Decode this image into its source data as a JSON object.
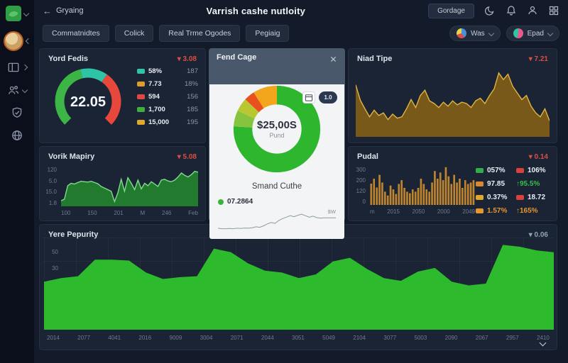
{
  "header": {
    "back_label": "Gryaing",
    "title": "Varrish cashe nutloity",
    "action_label": "Gordage"
  },
  "tabs": [
    "Commatnidtes",
    "Colick",
    "Real Trme Ogodes",
    "Pegiaig"
  ],
  "filters": {
    "filter1_label": "Was",
    "filter2_label": "Epad"
  },
  "cards": {
    "gauge": {
      "title": "Yord Fedis",
      "delta": "▾ 3.08",
      "value": "22.05",
      "legend": [
        {
          "sw": "#2ec4a5",
          "label": "58%",
          "value": "187"
        },
        {
          "sw": "#e09b2d",
          "label": "7.73",
          "value": "18%"
        },
        {
          "sw": "#e0493f",
          "label": "594",
          "value": "156"
        },
        {
          "sw": "#3fae3f",
          "label": "1,700",
          "value": "185"
        },
        {
          "sw": "#e0a92d",
          "label": "15,000",
          "value": "195"
        }
      ]
    },
    "fund": {
      "title": "Fend Cage",
      "toggle_label": "1.0",
      "amount": "$25,00S",
      "amount_label": "Pund",
      "subtitle": "Smand Cuthe",
      "spark_legend": "07.2864",
      "spark_value": "$W"
    },
    "niad": {
      "title": "Niad Tipe",
      "delta": "▾ 7.21"
    },
    "vorik": {
      "title": "Vorik Mapiry",
      "delta": "▾ 5.08"
    },
    "pudal": {
      "title": "Pudal",
      "delta": "▾ 0.14",
      "legend_left": [
        {
          "sw": "#2fae4a",
          "label": "057%"
        },
        {
          "sw": "#d98a2e",
          "label": "97.85"
        },
        {
          "sw": "#e0a92e",
          "label": "0.37%"
        },
        {
          "sw": "#e8962e",
          "label": "1.57%",
          "tc": "#e8962e"
        }
      ],
      "legend_right": [
        {
          "sw": "#d8413c",
          "label": "106%"
        },
        {
          "label": "↑95.5%",
          "tc": "#35c04a"
        },
        {
          "sw": "#d8413c",
          "label": "18.72"
        },
        {
          "label": "↑165%",
          "tc": "#e8962e"
        }
      ]
    },
    "years": {
      "title": "Yere Pepurity",
      "delta": "▾ 0.06"
    }
  },
  "chart_data": {
    "gauge_chart": {
      "type": "pie",
      "style": "gauge",
      "center_value": "22.05",
      "start_angle": 135,
      "sweep": 270,
      "segments": [
        {
          "color": "#3cb446",
          "frac": 0.45
        },
        {
          "color": "#2ec4a5",
          "frac": 0.18
        },
        {
          "color": "#e8473c",
          "frac": 0.37
        }
      ]
    },
    "fund_donut": {
      "type": "pie",
      "center": "$25,00S",
      "center_label": "Pund",
      "slices": [
        {
          "color": "#2eb62e",
          "frac": 0.76
        },
        {
          "color": "#86c43e",
          "frac": 0.06
        },
        {
          "color": "#b9c832",
          "frac": 0.05
        },
        {
          "color": "#e8501f",
          "frac": 0.04
        },
        {
          "color": "#f3a61b",
          "frac": 0.09
        }
      ]
    },
    "fund_spark": {
      "type": "line",
      "color": "#8aa08e",
      "values": [
        12,
        10,
        10,
        11,
        10,
        12,
        11,
        13,
        12,
        14,
        18,
        16,
        22,
        30,
        36,
        32,
        44,
        52,
        58,
        64,
        60,
        66,
        70,
        64,
        58,
        62,
        56,
        54,
        55,
        55,
        55,
        55
      ]
    },
    "niad_area": {
      "type": "area",
      "fill": "#78591a",
      "stroke": "#e3b341",
      "values": [
        78,
        55,
        42,
        30,
        40,
        32,
        36,
        26,
        34,
        28,
        30,
        42,
        56,
        44,
        62,
        70,
        54,
        50,
        44,
        52,
        46,
        54,
        48,
        52,
        50,
        44,
        54,
        58,
        50,
        62,
        72,
        96,
        86,
        94,
        76,
        66,
        56,
        62,
        46,
        36,
        30,
        42,
        24
      ]
    },
    "vorik_area": {
      "type": "area",
      "fill": "#217a2e",
      "stroke": "#7fdc8b",
      "yticks": [
        "120",
        "5.0",
        "15.0",
        "1.8"
      ],
      "xticks": [
        "100",
        "150",
        "201",
        "M",
        "246",
        "Feb"
      ],
      "values": [
        14,
        18,
        52,
        58,
        56,
        60,
        63,
        62,
        61,
        63,
        60,
        57,
        50,
        46,
        42,
        38,
        12,
        34,
        68,
        38,
        72,
        58,
        42,
        66,
        44,
        58,
        52,
        62,
        56,
        50,
        66,
        68,
        64,
        62,
        66,
        74,
        84,
        78,
        74,
        80,
        88,
        86
      ]
    },
    "pudal_bars": {
      "type": "bar",
      "color": "#bf7f26",
      "yticks": [
        "300",
        "200",
        "120",
        "0"
      ],
      "xticks": [
        "m",
        "2015",
        "2050",
        "2000",
        "2049"
      ],
      "values": [
        55,
        68,
        45,
        78,
        58,
        34,
        24,
        50,
        40,
        28,
        54,
        64,
        44,
        34,
        30,
        40,
        34,
        44,
        68,
        54,
        40,
        34,
        58,
        88,
        68,
        84,
        64,
        98,
        74,
        54,
        78,
        58,
        68,
        44,
        64,
        54,
        58,
        64
      ]
    },
    "years_area": {
      "type": "area",
      "fill": "#2dbb2d",
      "stroke": "#2dbb2d",
      "yticks": [
        "50",
        "30",
        "21"
      ],
      "xticks": [
        "2014",
        "2077",
        "4041",
        "2016",
        "9009",
        "3004",
        "2071",
        "2044",
        "3051",
        "5049",
        "2104",
        "3077",
        "5003",
        "2090",
        "2067",
        "2957",
        "2410"
      ],
      "values": [
        52,
        56,
        58,
        76,
        76,
        75,
        62,
        55,
        57,
        58,
        88,
        84,
        72,
        64,
        62,
        56,
        60,
        74,
        78,
        66,
        56,
        53,
        63,
        67,
        52,
        48,
        50,
        92,
        90,
        86,
        84
      ]
    }
  }
}
